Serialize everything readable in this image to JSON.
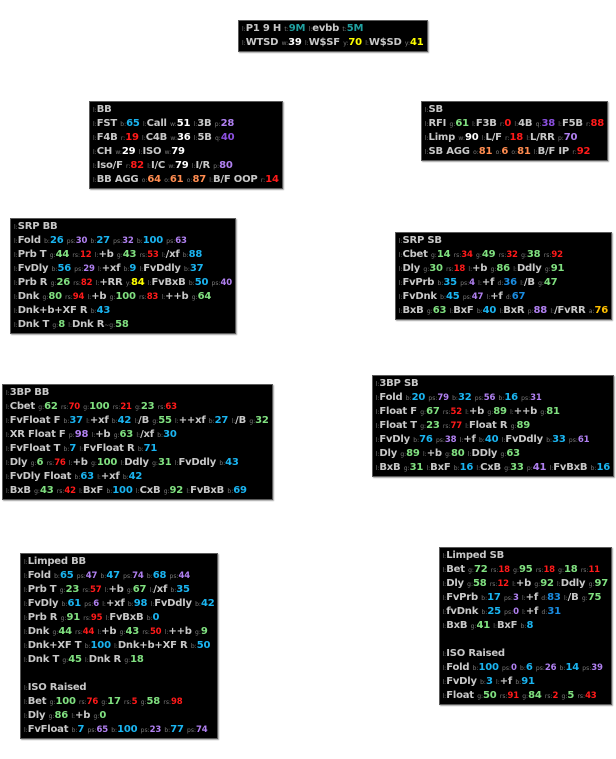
{
  "colors": {
    "l": "#c8c8c8",
    "w": "#ffffff",
    "g": "#80e080",
    "r": "#ff1a1a",
    "b": "#1ab4f0",
    "d": "#1a8ce0",
    "p": "#b080f0",
    "q": "#8c50e0",
    "t": "#20a0a0",
    "o": "#ff8c50",
    "y": "#ffff00",
    "a": "#ffc000"
  },
  "panels": [
    {
      "id": "p-top",
      "name": "player-summary-panel",
      "lines": [
        [
          "l:P1  9  H",
          "t:9M",
          "l:evbb",
          "t:5M"
        ],
        [
          "l:WTSD",
          "w:39",
          "l:W$SF",
          "y:70",
          "l:W$SD",
          "y:41"
        ]
      ]
    },
    {
      "id": "p-bb",
      "name": "bb-stats-panel",
      "lines": [
        [
          "l:BB"
        ],
        [
          "l:FST",
          "b:65",
          "l:Call",
          "w:51",
          "l:3B",
          "p:28"
        ],
        [
          "l:F4B",
          "r:19",
          "l:C4B",
          "w:36",
          "l:5B",
          "q:40"
        ],
        [
          "l:CH",
          "w:29",
          "l:ISO",
          "w:79"
        ],
        [
          "l:Iso/F",
          "r:82",
          "l:I/C",
          "w:79",
          "l:I/R",
          "p:80"
        ],
        [
          "l:BB AGG",
          "o:64",
          "o:61",
          "o:87",
          "l:B/F OOP",
          "r:14"
        ]
      ]
    },
    {
      "id": "p-sb",
      "name": "sb-stats-panel",
      "lines": [
        [
          "l:SB"
        ],
        [
          "l:RFI",
          "g:61",
          "l:F3B",
          "r:0",
          "l:4B",
          "q:38",
          "l:F5B",
          "r:88"
        ],
        [
          "l:Limp",
          "w:90",
          "l:L/F",
          "r:18",
          "l:L/RR",
          "p:70"
        ],
        [
          "l:SB AGG",
          "o:81",
          "o:6",
          "o:81",
          "l:B/F IP",
          "r:92"
        ]
      ]
    },
    {
      "id": "p-srpbb",
      "name": "srp-bb-panel",
      "lines": [
        [
          "l:SRP BB"
        ],
        [
          "l:Fold",
          "b:26",
          "ps:30",
          "b:27",
          "ps:32",
          "b:100",
          "ps:63"
        ],
        [
          "l:Prb T",
          "g:44",
          "rs:12",
          "l:+b",
          "g:43",
          "rs:53",
          "l:/xf",
          "b:88"
        ],
        [
          "l:FvDly",
          "b:56",
          "ps:29",
          "l:+xf",
          "b:9",
          "l:FvDdly",
          "b:37"
        ],
        [
          "l:Prb R",
          "g:26",
          "rs:82",
          "l:+RR",
          "y:84",
          "l:FvBxB",
          "b:50",
          "ps:40"
        ],
        [
          "l:Dnk",
          "g:80",
          "rs:94",
          "l:+b",
          "g:100",
          "rs:83",
          "l:++b",
          "g:64"
        ],
        [
          "l:Dnk+b+XF R",
          "b:43"
        ],
        [
          "l:Dnk T",
          "g:8",
          "l:Dnk R",
          "~g:58"
        ]
      ]
    },
    {
      "id": "p-srpsb",
      "name": "srp-sb-panel",
      "lines": [
        [
          "l:SRP SB"
        ],
        [
          "l:Cbet",
          "g:14",
          "rs:34",
          "g:49",
          "rs:32",
          "g:38",
          "rs:92"
        ],
        [
          "l:Dly",
          "g:30",
          "rs:18",
          "l:+b",
          "g:86",
          "l:Ddly",
          "g:91"
        ],
        [
          "l:FvPrb",
          "b:35",
          "ps:4",
          "l:+f",
          "d:36",
          "l:/B",
          "g:47"
        ],
        [
          "l:FvDnk",
          "b:45",
          "ps:47",
          "l:+f",
          "d:67"
        ],
        [
          "l:BxB",
          "g:63",
          "l:BxF",
          "b:40",
          "l:BxR",
          "p:88",
          "l:/FvRR",
          "a:76"
        ]
      ]
    },
    {
      "id": "p-3bpbb",
      "name": "3bp-bb-panel",
      "lines": [
        [
          "l:3BP BB"
        ],
        [
          "l:Cbet",
          "g:62",
          "rs:70",
          "g:100",
          "rs:21",
          "g:23",
          "rs:63"
        ],
        [
          "l:FvFloat F",
          "b:37",
          "l:+xf",
          "b:42",
          "l:/B",
          "g:55",
          "l:++xf",
          "b:27",
          "l:/B",
          "g:32"
        ],
        [
          "l:XR Float F",
          "p:98",
          "l:+b",
          "g:63",
          "l:/xf",
          "b:30"
        ],
        [
          "l:FvFloat T",
          "b:7",
          "l:FvFloat R",
          "b:71"
        ],
        [
          "l:Dly",
          "g:6",
          "rs:76",
          "l:+b",
          "g:100",
          "l:Ddly",
          "g:31",
          "l:FvDdly",
          "b:43"
        ],
        [
          "l:FvDly Float",
          "b:63",
          "l:+xf",
          "b:42"
        ],
        [
          "l:BxB",
          "g:43",
          "rs:42",
          "l:BxF",
          "b:100",
          "l:CxB",
          "g:92",
          "l:FvBxB",
          "b:69"
        ]
      ]
    },
    {
      "id": "p-3bpsb",
      "name": "3bp-sb-panel",
      "lines": [
        [
          "l:3BP SB"
        ],
        [
          "l:Fold",
          "b:20",
          "ps:79",
          "b:32",
          "ps:56",
          "b:16",
          "ps:31"
        ],
        [
          "l:Float F",
          "g:67",
          "rs:52",
          "l:+b",
          "g:89",
          "l:++b",
          "g:81"
        ],
        [
          "l:Float T",
          "g:23",
          "rs:77",
          "l:Float R",
          "g:89"
        ],
        [
          "l:FvDly",
          "b:76",
          "ps:38",
          "l:+f",
          "b:40",
          "l:FvDdly",
          "b:33",
          "ps:61"
        ],
        [
          "l:Dly",
          "g:89",
          "l:+b",
          "g:80",
          "l:DDly",
          "g:63"
        ],
        [
          "l:BxB",
          "g:31",
          "l:BxF",
          "b:16",
          "l:CxB",
          "g:33",
          "p:41",
          "l:FvBxB",
          "b:16"
        ]
      ]
    },
    {
      "id": "p-limbb",
      "name": "limped-bb-panel",
      "lines": [
        [
          "l:Limped BB"
        ],
        [
          "l:Fold",
          "b:65",
          "ps:47",
          "b:47",
          "ps:74",
          "b:68",
          "ps:44"
        ],
        [
          "l:Prb T",
          "g:23",
          "rs:57",
          "l:+b",
          "g:67",
          "l:/xf",
          "b:35"
        ],
        [
          "l:FvDly",
          "b:61",
          "ps:6",
          "l:+xf",
          "b:98",
          "l:FvDdly",
          "b:42"
        ],
        [
          "l:Prb R",
          "g:91",
          "rs:95",
          "l:FvBxB",
          "b:0"
        ],
        [
          "l:Dnk",
          "g:44",
          "rs:44",
          "l:+b",
          "g:43",
          "rs:50",
          "l:++b",
          "g:9"
        ],
        [
          "l:Dnk+XF T",
          "b:100",
          "l:Dnk+b+XF R",
          "b:50"
        ],
        [
          "l:Dnk T",
          "g:45",
          "l:Dnk R",
          "g:18"
        ],
        [],
        [
          "l:ISO Raised"
        ],
        [
          "l:Bet",
          "g:100",
          "rs:76",
          "g:17",
          "rs:5",
          "g:58",
          "rs:98"
        ],
        [
          "l:Dly",
          "g:86",
          "l:+b",
          "g:0"
        ],
        [
          "l:FvFloat",
          "b:7",
          "ps:65",
          "b:100",
          "ps:23",
          "b:77",
          "ps:74"
        ]
      ]
    },
    {
      "id": "p-limsb",
      "name": "limped-sb-panel",
      "lines": [
        [
          "l:Limped SB"
        ],
        [
          "l:Bet",
          "g:72",
          "rs:18",
          "g:95",
          "rs:18",
          "g:18",
          "rs:11"
        ],
        [
          "l:Dly",
          "g:58",
          "rs:12",
          "l:+b",
          "g:92",
          "l:Ddly",
          "g:97"
        ],
        [
          "l:FvPrb",
          "b:17",
          "ps:3",
          "l:+f",
          "d:83",
          "l:/B",
          "g:75"
        ],
        [
          "l:fvDnk",
          "b:25",
          "ps:0",
          "l:+f",
          "d:31"
        ],
        [
          "l:BxB",
          "g:41",
          "l:BxF",
          "b:8"
        ],
        [],
        [
          "l:ISO Raised"
        ],
        [
          "l:Fold",
          "b:100",
          "ps:0",
          "b:6",
          "ps:26",
          "b:14",
          "ps:39"
        ],
        [
          "l:FvDly",
          "b:3",
          "l:+f",
          "b:91"
        ],
        [
          "l:Float",
          "g:50",
          "rs:91",
          "g:84",
          "rs:2",
          "g:5",
          "rs:43"
        ]
      ]
    }
  ]
}
